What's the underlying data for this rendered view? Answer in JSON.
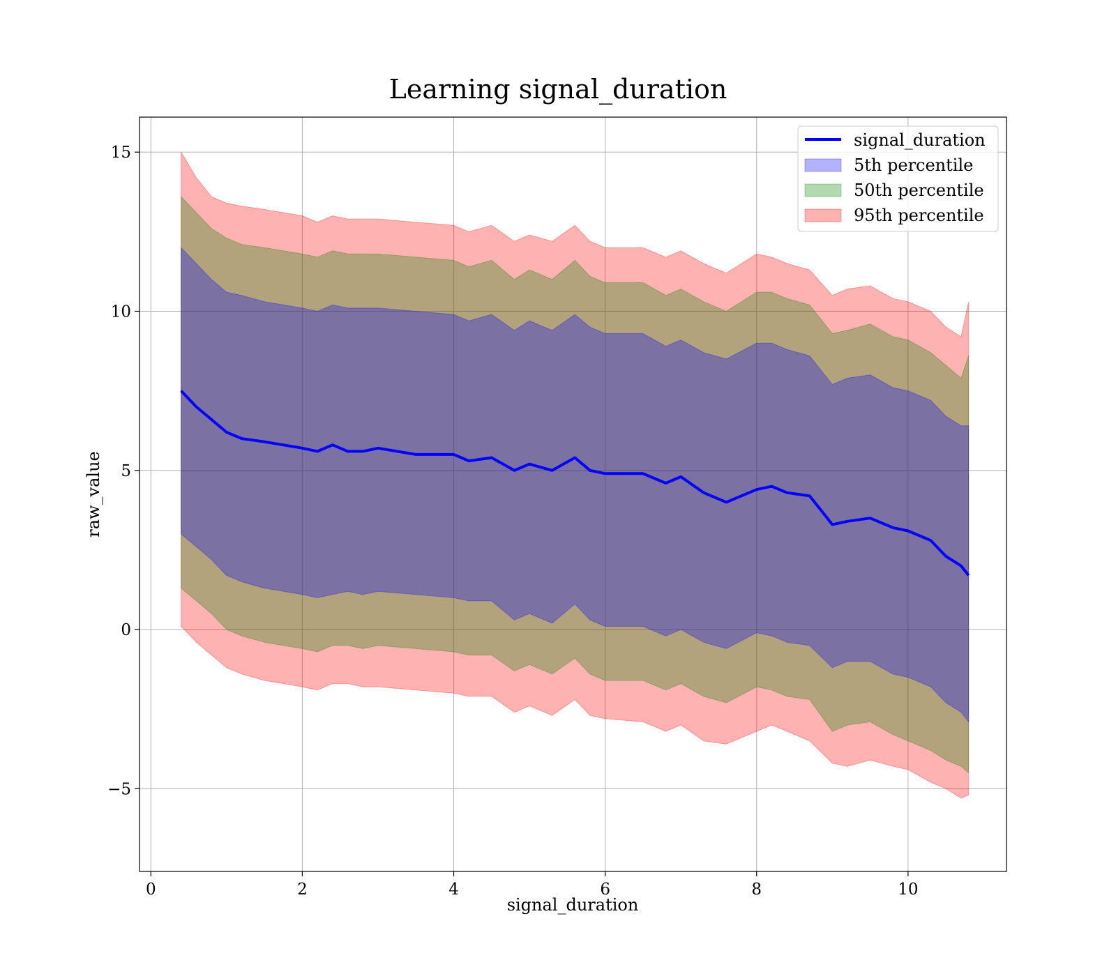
{
  "chart_data": {
    "type": "area",
    "title": "Learning signal_duration",
    "xlabel": "signal_duration",
    "ylabel": "raw_value",
    "xlim": [
      -0.15,
      11.3
    ],
    "ylim": [
      -7.6,
      16.1
    ],
    "xticks": [
      0,
      2,
      4,
      6,
      8,
      10
    ],
    "yticks": [
      -5,
      0,
      5,
      10,
      15
    ],
    "xtick_labels": [
      "0",
      "2",
      "4",
      "6",
      "8",
      "10"
    ],
    "ytick_labels": [
      "−5",
      "0",
      "5",
      "10",
      "15"
    ],
    "grid": true,
    "legend_position": "top-right",
    "legend": [
      {
        "name": "signal_duration",
        "kind": "line",
        "color": "#0000ff"
      },
      {
        "name": "5th percentile",
        "kind": "band",
        "color": "#0000ff",
        "alpha": 0.3
      },
      {
        "name": "50th percentile",
        "kind": "band",
        "color": "#008000",
        "alpha": 0.3
      },
      {
        "name": "95th percentile",
        "kind": "band",
        "color": "#ff0000",
        "alpha": 0.3
      }
    ],
    "x": [
      0.4,
      0.6,
      0.8,
      1.0,
      1.2,
      1.5,
      2.0,
      2.2,
      2.4,
      2.6,
      2.8,
      3.0,
      3.5,
      4.0,
      4.2,
      4.5,
      4.8,
      5.0,
      5.3,
      5.6,
      5.8,
      6.0,
      6.5,
      6.8,
      7.0,
      7.3,
      7.6,
      8.0,
      8.2,
      8.4,
      8.7,
      9.0,
      9.2,
      9.5,
      9.8,
      10.0,
      10.3,
      10.5,
      10.7,
      10.8
    ],
    "series": [
      {
        "name": "signal_duration",
        "values": [
          7.5,
          7.0,
          6.6,
          6.2,
          6.0,
          5.9,
          5.7,
          5.6,
          5.8,
          5.6,
          5.6,
          5.7,
          5.5,
          5.5,
          5.3,
          5.4,
          5.0,
          5.2,
          5.0,
          5.4,
          5.0,
          4.9,
          4.9,
          4.6,
          4.8,
          4.3,
          4.0,
          4.4,
          4.5,
          4.3,
          4.2,
          3.3,
          3.4,
          3.5,
          3.2,
          3.1,
          2.8,
          2.3,
          2.0,
          1.7
        ]
      },
      {
        "name": "5th percentile",
        "lower": [
          3.0,
          2.6,
          2.2,
          1.7,
          1.5,
          1.3,
          1.1,
          1.0,
          1.1,
          1.2,
          1.1,
          1.2,
          1.1,
          1.0,
          0.9,
          0.9,
          0.3,
          0.5,
          0.2,
          0.8,
          0.3,
          0.1,
          0.1,
          -0.2,
          0.0,
          -0.4,
          -0.6,
          -0.1,
          -0.2,
          -0.4,
          -0.5,
          -1.2,
          -1.0,
          -1.0,
          -1.4,
          -1.5,
          -1.8,
          -2.3,
          -2.6,
          -2.9
        ],
        "upper": [
          12.0,
          11.5,
          11.0,
          10.6,
          10.5,
          10.3,
          10.1,
          10.0,
          10.2,
          10.1,
          10.1,
          10.1,
          10.0,
          9.9,
          9.7,
          9.9,
          9.4,
          9.7,
          9.4,
          9.9,
          9.5,
          9.3,
          9.3,
          8.9,
          9.1,
          8.7,
          8.5,
          9.0,
          9.0,
          8.8,
          8.6,
          7.7,
          7.9,
          8.0,
          7.6,
          7.5,
          7.2,
          6.7,
          6.4,
          6.4
        ]
      },
      {
        "name": "50th percentile",
        "lower": [
          1.3,
          0.9,
          0.5,
          0.0,
          -0.2,
          -0.4,
          -0.6,
          -0.7,
          -0.5,
          -0.5,
          -0.6,
          -0.5,
          -0.6,
          -0.7,
          -0.8,
          -0.8,
          -1.3,
          -1.1,
          -1.4,
          -0.9,
          -1.4,
          -1.6,
          -1.6,
          -1.9,
          -1.7,
          -2.1,
          -2.3,
          -1.8,
          -1.9,
          -2.1,
          -2.2,
          -3.2,
          -3.0,
          -2.9,
          -3.3,
          -3.5,
          -3.8,
          -4.1,
          -4.3,
          -4.5
        ],
        "upper": [
          13.6,
          13.1,
          12.6,
          12.3,
          12.1,
          12.0,
          11.8,
          11.7,
          11.9,
          11.8,
          11.8,
          11.8,
          11.7,
          11.6,
          11.4,
          11.6,
          11.0,
          11.3,
          11.0,
          11.6,
          11.1,
          10.9,
          10.9,
          10.5,
          10.7,
          10.3,
          10.0,
          10.6,
          10.6,
          10.4,
          10.2,
          9.3,
          9.4,
          9.6,
          9.2,
          9.1,
          8.7,
          8.3,
          7.9,
          8.6
        ]
      },
      {
        "name": "95th percentile",
        "lower": [
          0.1,
          -0.4,
          -0.8,
          -1.2,
          -1.4,
          -1.6,
          -1.8,
          -1.9,
          -1.7,
          -1.7,
          -1.8,
          -1.8,
          -1.9,
          -2.0,
          -2.1,
          -2.1,
          -2.6,
          -2.4,
          -2.7,
          -2.2,
          -2.7,
          -2.8,
          -2.9,
          -3.2,
          -3.0,
          -3.5,
          -3.6,
          -3.2,
          -3.0,
          -3.2,
          -3.5,
          -4.2,
          -4.3,
          -4.1,
          -4.3,
          -4.4,
          -4.8,
          -5.0,
          -5.3,
          -5.2
        ],
        "upper": [
          15.0,
          14.2,
          13.6,
          13.4,
          13.3,
          13.2,
          13.0,
          12.8,
          13.0,
          12.9,
          12.9,
          12.9,
          12.8,
          12.7,
          12.5,
          12.7,
          12.2,
          12.4,
          12.2,
          12.7,
          12.2,
          12.0,
          12.0,
          11.7,
          11.9,
          11.5,
          11.2,
          11.8,
          11.7,
          11.5,
          11.3,
          10.5,
          10.7,
          10.8,
          10.4,
          10.3,
          10.0,
          9.5,
          9.2,
          10.3
        ]
      }
    ]
  }
}
